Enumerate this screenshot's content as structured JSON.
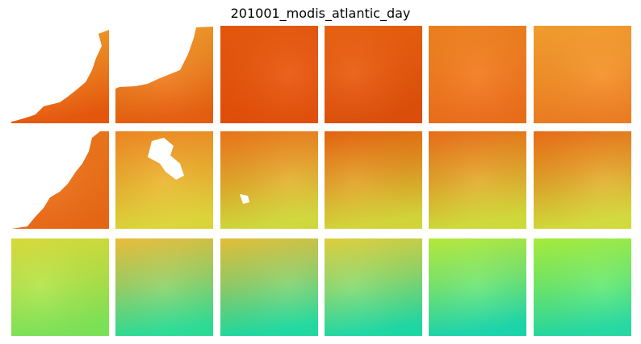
{
  "title": "201001_modis_atlantic_day",
  "tiles": [
    {
      "row": 0,
      "col": 0,
      "top": "#f7a52e",
      "bottom": "#ed5a0c",
      "coast": "r0c0"
    },
    {
      "row": 0,
      "col": 1,
      "top": "#f4a22c",
      "bottom": "#ec600e",
      "coast": "r0c1"
    },
    {
      "row": 0,
      "col": 2,
      "top": "#ec5a0e",
      "bottom": "#e85009"
    },
    {
      "row": 0,
      "col": 3,
      "top": "#ee620f",
      "bottom": "#e3500a"
    },
    {
      "row": 0,
      "col": 4,
      "top": "#f48420",
      "bottom": "#f1701a"
    },
    {
      "row": 0,
      "col": 5,
      "top": "#f9a22f",
      "bottom": "#f38022"
    },
    {
      "row": 1,
      "col": 0,
      "top": "#f17a1d",
      "bottom": "#ee6a15",
      "coast": "r1c0"
    },
    {
      "row": 1,
      "col": 1,
      "top": "#f58a22",
      "bottom": "#e3dc3a",
      "clouds": "r1c1"
    },
    {
      "row": 1,
      "col": 2,
      "top": "#f2781c",
      "bottom": "#d6e03c",
      "clouds": "r1c2"
    },
    {
      "row": 1,
      "col": 3,
      "top": "#ec6510",
      "bottom": "#d9dd3a"
    },
    {
      "row": 1,
      "col": 4,
      "top": "#f0701a",
      "bottom": "#d5e23a"
    },
    {
      "row": 1,
      "col": 5,
      "top": "#f07018",
      "bottom": "#d8e23d"
    },
    {
      "row": 2,
      "col": 0,
      "top": "#dfe13a",
      "bottom": "#7fe95a"
    },
    {
      "row": 2,
      "col": 1,
      "top": "#f2c33a",
      "bottom": "#2de39a"
    },
    {
      "row": 2,
      "col": 2,
      "top": "#ecc53a",
      "bottom": "#20e0a4"
    },
    {
      "row": 2,
      "col": 3,
      "top": "#e7d53c",
      "bottom": "#1fdfa9"
    },
    {
      "row": 2,
      "col": 4,
      "top": "#bdf03b",
      "bottom": "#1bdbb0"
    },
    {
      "row": 2,
      "col": 5,
      "top": "#aef43c",
      "bottom": "#25dfa6"
    }
  ]
}
